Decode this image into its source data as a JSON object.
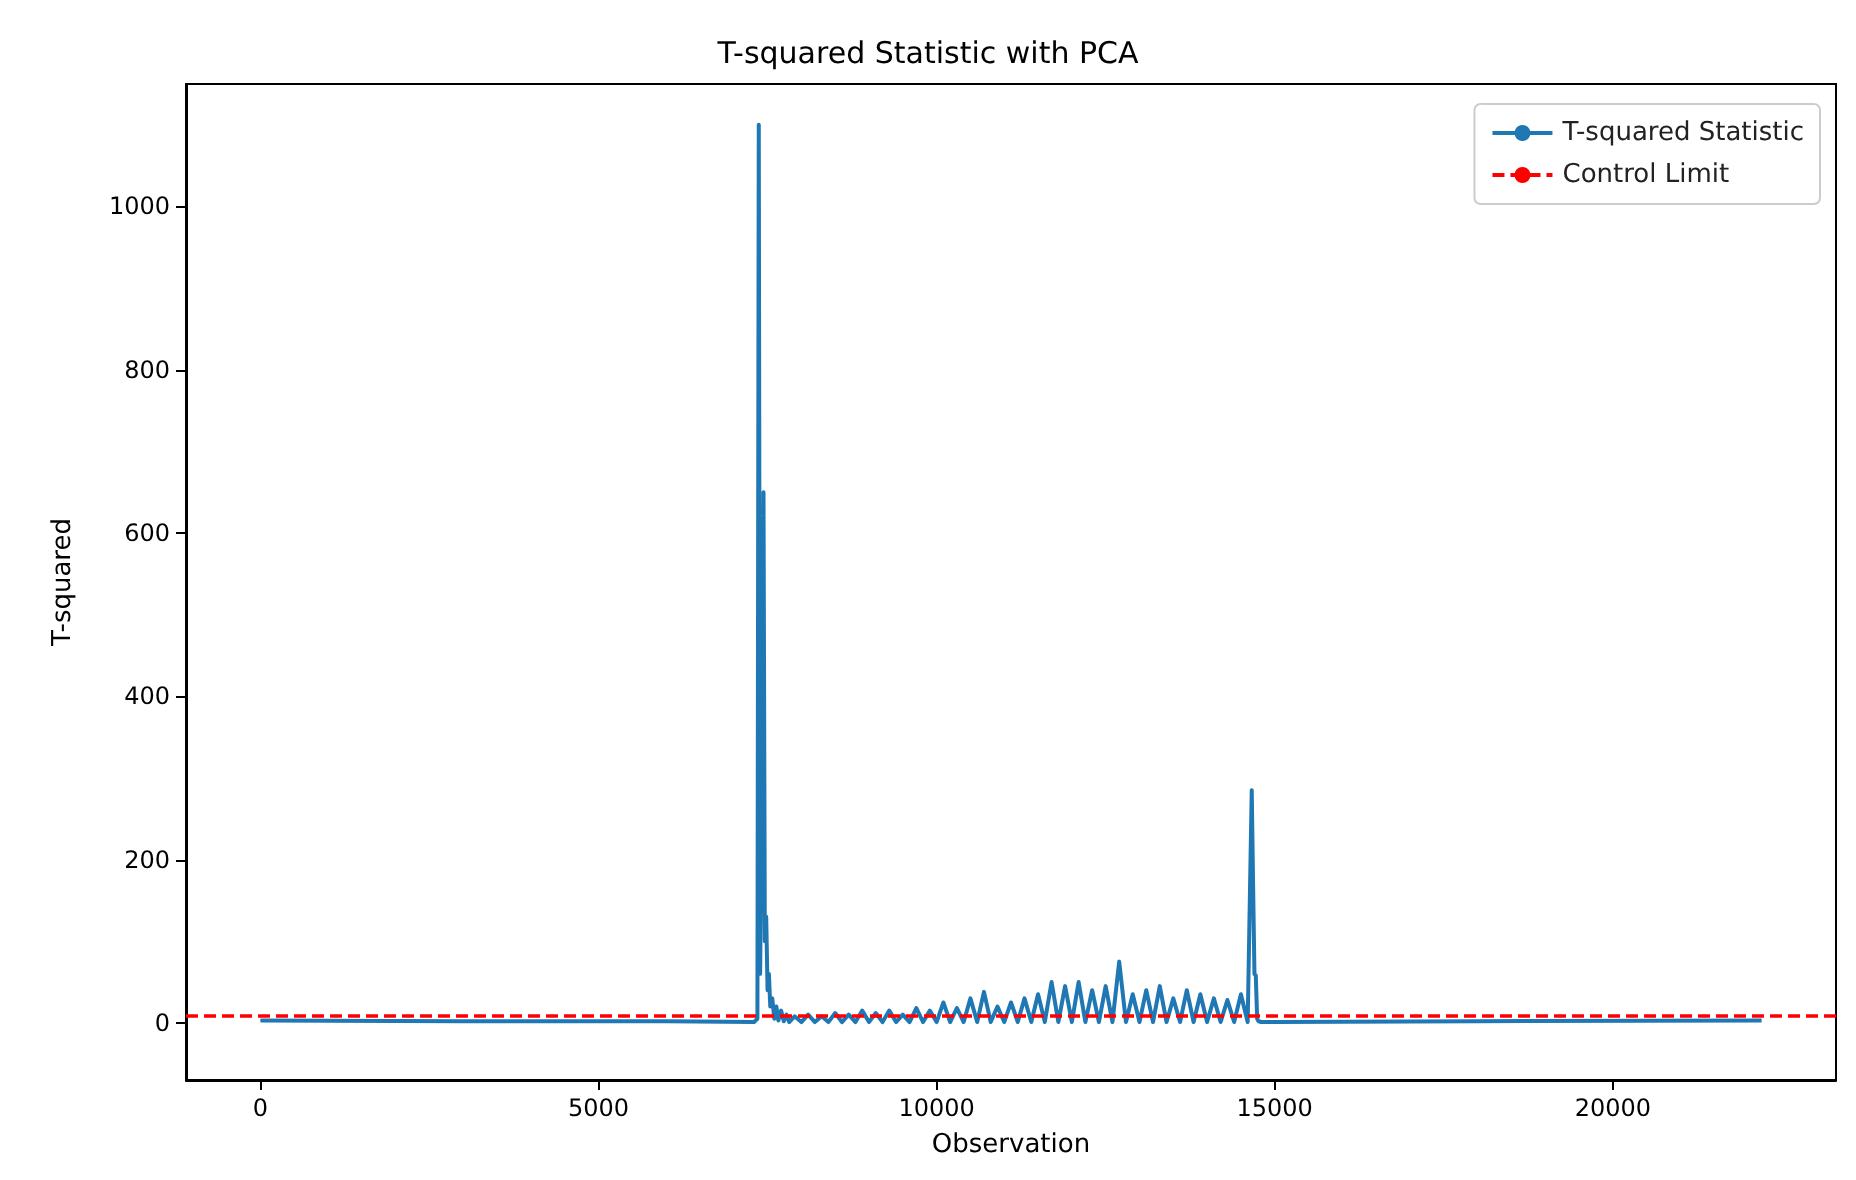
{
  "chart_data": {
    "type": "line",
    "title": "T-squared Statistic with PCA",
    "xlabel": "Observation",
    "ylabel": "T-squared",
    "xlim": [
      -1100,
      23300
    ],
    "ylim": [
      -70,
      1150
    ],
    "xticks": [
      0,
      5000,
      10000,
      15000,
      20000
    ],
    "yticks": [
      0,
      200,
      400,
      600,
      800,
      1000
    ],
    "grid": false,
    "legend": "top right",
    "marker": "none",
    "line_style": "solid",
    "series": [
      {
        "name": "T-squared Statistic",
        "color": "#1f77b4",
        "x": [
          0,
          3000,
          6000,
          7300,
          7350,
          7370,
          7390,
          7420,
          7440,
          7460,
          7480,
          7500,
          7520,
          7540,
          7570,
          7600,
          7630,
          7660,
          7700,
          7740,
          7780,
          7820,
          7900,
          8000,
          8100,
          8200,
          8300,
          8400,
          8500,
          8600,
          8700,
          8800,
          8900,
          9000,
          9100,
          9200,
          9300,
          9400,
          9500,
          9600,
          9700,
          9800,
          9900,
          10000,
          10100,
          10200,
          10300,
          10400,
          10500,
          10600,
          10700,
          10800,
          10900,
          11000,
          11100,
          11200,
          11300,
          11400,
          11500,
          11600,
          11700,
          11800,
          11900,
          12000,
          12100,
          12200,
          12300,
          12400,
          12500,
          12600,
          12700,
          12800,
          12900,
          13000,
          13100,
          13200,
          13300,
          13400,
          13500,
          13600,
          13700,
          13800,
          13900,
          14000,
          14100,
          14200,
          14300,
          14400,
          14500,
          14600,
          14660,
          14680,
          14700,
          14720,
          14740,
          14760,
          14800,
          15000,
          18000,
          22200
        ],
        "values": [
          3,
          2,
          2,
          1,
          5,
          1100,
          60,
          300,
          650,
          100,
          130,
          40,
          60,
          20,
          30,
          5,
          20,
          3,
          15,
          2,
          10,
          1,
          8,
          1,
          10,
          1,
          8,
          1,
          12,
          1,
          10,
          1,
          15,
          1,
          12,
          1,
          15,
          1,
          10,
          1,
          18,
          1,
          15,
          1,
          25,
          1,
          18,
          1,
          30,
          1,
          38,
          1,
          20,
          1,
          25,
          1,
          30,
          1,
          35,
          1,
          50,
          1,
          45,
          1,
          50,
          1,
          40,
          1,
          45,
          1,
          75,
          1,
          35,
          1,
          40,
          1,
          45,
          1,
          30,
          1,
          40,
          1,
          35,
          1,
          30,
          1,
          28,
          1,
          35,
          1,
          285,
          170,
          60,
          58,
          5,
          2,
          1,
          1,
          2,
          3
        ]
      }
    ],
    "ref_lines": [
      {
        "axis": "y",
        "value": 10,
        "label": "Control Limit",
        "color": "#ff0000",
        "line_style": "dashed"
      }
    ]
  }
}
